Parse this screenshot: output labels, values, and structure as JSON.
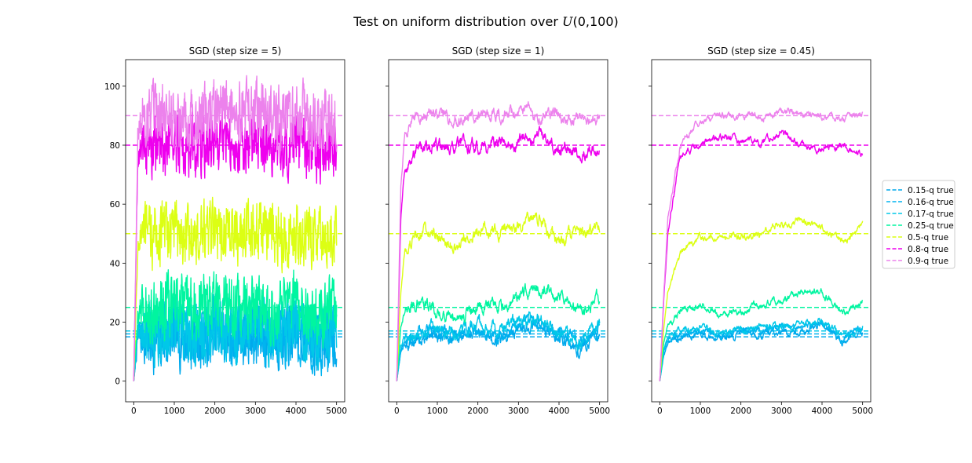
{
  "figure": {
    "suptitle": "Test on uniform distribution over U(0,100)"
  },
  "chart_data": [
    {
      "type": "line",
      "title": "SGD (step size = 5)",
      "step_size": 5,
      "xlim": [
        -200,
        5200
      ],
      "ylim": [
        -7,
        109
      ],
      "xticks": [
        0,
        1000,
        2000,
        3000,
        4000,
        5000
      ],
      "yticks": [
        0,
        20,
        40,
        60,
        80,
        100
      ],
      "n_iterations": 5000,
      "noise_amplitude": 7.5,
      "series": [
        {
          "name": "0.15-q",
          "color": "#00a9ec",
          "true_value": 15,
          "x": [
            0,
            100,
            200,
            500,
            1000,
            1500,
            2000,
            2500,
            3000,
            3500,
            4000,
            4500,
            5000
          ],
          "y": [
            0,
            14,
            15,
            14,
            16,
            14,
            17,
            15,
            16,
            15,
            17,
            13,
            15
          ]
        },
        {
          "name": "0.16-q",
          "color": "#00b4f0",
          "true_value": 16,
          "x": [
            0,
            100,
            200,
            500,
            1000,
            1500,
            2000,
            2500,
            3000,
            3500,
            4000,
            4500,
            5000
          ],
          "y": [
            0,
            15,
            16,
            15,
            17,
            15,
            18,
            16,
            17,
            16,
            18,
            14,
            16
          ]
        },
        {
          "name": "0.17-q",
          "color": "#00c8e8",
          "true_value": 17,
          "x": [
            0,
            100,
            200,
            500,
            1000,
            1500,
            2000,
            2500,
            3000,
            3500,
            4000,
            4500,
            5000
          ],
          "y": [
            0,
            16,
            17,
            16,
            18,
            16,
            19,
            17,
            18,
            17,
            19,
            15,
            17
          ]
        },
        {
          "name": "0.25-q",
          "color": "#00f5a0",
          "true_value": 25,
          "x": [
            0,
            100,
            200,
            500,
            1000,
            1500,
            2000,
            2500,
            3000,
            3500,
            4000,
            4500,
            5000
          ],
          "y": [
            0,
            22,
            25,
            24,
            26,
            24,
            27,
            25,
            26,
            24,
            27,
            23,
            25
          ]
        },
        {
          "name": "0.5-q",
          "color": "#dcff14",
          "true_value": 50,
          "x": [
            0,
            100,
            200,
            500,
            1000,
            1500,
            2000,
            2500,
            3000,
            3500,
            4000,
            4500,
            5000
          ],
          "y": [
            0,
            45,
            50,
            49,
            52,
            48,
            51,
            50,
            52,
            49,
            51,
            47,
            50
          ]
        },
        {
          "name": "0.8-q",
          "color": "#ee00ee",
          "true_value": 80,
          "x": [
            0,
            100,
            200,
            500,
            1000,
            1500,
            2000,
            2500,
            3000,
            3500,
            4000,
            4500,
            5000
          ],
          "y": [
            0,
            75,
            80,
            79,
            81,
            79,
            82,
            80,
            81,
            79,
            81,
            78,
            80
          ]
        },
        {
          "name": "0.9-q",
          "color": "#ec82ec",
          "true_value": 90,
          "x": [
            0,
            100,
            200,
            500,
            1000,
            1500,
            2000,
            2500,
            3000,
            3500,
            4000,
            4500,
            5000
          ],
          "y": [
            0,
            84,
            90,
            89,
            91,
            89,
            92,
            90,
            91,
            89,
            91,
            88,
            90
          ]
        }
      ]
    },
    {
      "type": "line",
      "title": "SGD (step size = 1)",
      "step_size": 1,
      "xlim": [
        -200,
        5200
      ],
      "ylim": [
        -7,
        109
      ],
      "xticks": [
        0,
        1000,
        2000,
        3000,
        4000,
        5000
      ],
      "yticks": [
        0,
        20,
        40,
        60,
        80,
        100
      ],
      "n_iterations": 5000,
      "noise_amplitude": 1.5,
      "series": [
        {
          "name": "0.15-q",
          "color": "#00a9ec",
          "true_value": 15,
          "x": [
            0,
            100,
            200,
            500,
            1000,
            1500,
            2000,
            2500,
            3000,
            3500,
            4000,
            4500,
            5000
          ],
          "y": [
            0,
            10,
            13,
            14,
            16,
            14,
            17,
            15,
            18,
            19,
            15,
            11,
            17
          ]
        },
        {
          "name": "0.16-q",
          "color": "#00b4f0",
          "true_value": 16,
          "x": [
            0,
            100,
            200,
            500,
            1000,
            1500,
            2000,
            2500,
            3000,
            3500,
            4000,
            4500,
            5000
          ],
          "y": [
            0,
            11,
            14,
            15,
            17,
            15,
            18,
            16,
            19,
            20,
            16,
            12,
            18
          ]
        },
        {
          "name": "0.17-q",
          "color": "#00c8e8",
          "true_value": 17,
          "x": [
            0,
            100,
            200,
            500,
            1000,
            1500,
            2000,
            2500,
            3000,
            3500,
            4000,
            4500,
            5000
          ],
          "y": [
            0,
            12,
            15,
            16,
            18,
            16,
            19,
            17,
            20,
            21,
            17,
            13,
            19
          ]
        },
        {
          "name": "0.25-q",
          "color": "#00f5a0",
          "true_value": 25,
          "x": [
            0,
            100,
            200,
            500,
            1000,
            1500,
            2000,
            2500,
            3000,
            3500,
            4000,
            4500,
            5000
          ],
          "y": [
            0,
            18,
            24,
            27,
            24,
            21,
            26,
            25,
            28,
            32,
            28,
            24,
            28
          ]
        },
        {
          "name": "0.5-q",
          "color": "#dcff14",
          "true_value": 50,
          "x": [
            0,
            100,
            200,
            500,
            1000,
            1500,
            2000,
            2500,
            3000,
            3500,
            4000,
            4500,
            5000
          ],
          "y": [
            0,
            30,
            44,
            50,
            50,
            46,
            51,
            50,
            53,
            55,
            47,
            50,
            53
          ]
        },
        {
          "name": "0.8-q",
          "color": "#ee00ee",
          "true_value": 80,
          "x": [
            0,
            100,
            200,
            500,
            1000,
            1500,
            2000,
            2500,
            3000,
            3500,
            4000,
            4500,
            5000
          ],
          "y": [
            0,
            55,
            72,
            80,
            79,
            81,
            79,
            82,
            81,
            84,
            79,
            78,
            78
          ]
        },
        {
          "name": "0.9-q",
          "color": "#ec82ec",
          "true_value": 90,
          "x": [
            0,
            100,
            200,
            500,
            1000,
            1500,
            2000,
            2500,
            3000,
            3500,
            4000,
            4500,
            5000
          ],
          "y": [
            0,
            65,
            84,
            91,
            90,
            89,
            91,
            90,
            92,
            90,
            90,
            89,
            89
          ]
        }
      ]
    },
    {
      "type": "line",
      "title": "SGD (step size = 0.45)",
      "step_size": 0.45,
      "xlim": [
        -200,
        5200
      ],
      "ylim": [
        -7,
        109
      ],
      "xticks": [
        0,
        1000,
        2000,
        3000,
        4000,
        5000
      ],
      "yticks": [
        0,
        20,
        40,
        60,
        80,
        100
      ],
      "n_iterations": 5000,
      "noise_amplitude": 0.8,
      "series": [
        {
          "name": "0.15-q",
          "color": "#00a9ec",
          "true_value": 15,
          "x": [
            0,
            100,
            200,
            500,
            1000,
            1500,
            2000,
            2500,
            3000,
            3500,
            4000,
            4500,
            5000
          ],
          "y": [
            0,
            9,
            13,
            15,
            16,
            14,
            16,
            16,
            17,
            17,
            19,
            13,
            17
          ]
        },
        {
          "name": "0.16-q",
          "color": "#00b4f0",
          "true_value": 16,
          "x": [
            0,
            100,
            200,
            500,
            1000,
            1500,
            2000,
            2500,
            3000,
            3500,
            4000,
            4500,
            5000
          ],
          "y": [
            0,
            10,
            14,
            16,
            17,
            15,
            17,
            17,
            18,
            18,
            20,
            14,
            18
          ]
        },
        {
          "name": "0.17-q",
          "color": "#00c8e8",
          "true_value": 17,
          "x": [
            0,
            100,
            200,
            500,
            1000,
            1500,
            2000,
            2500,
            3000,
            3500,
            4000,
            4500,
            5000
          ],
          "y": [
            0,
            11,
            15,
            17,
            18,
            16,
            18,
            18,
            19,
            19,
            21,
            15,
            19
          ]
        },
        {
          "name": "0.25-q",
          "color": "#00f5a0",
          "true_value": 25,
          "x": [
            0,
            100,
            200,
            500,
            1000,
            1500,
            2000,
            2500,
            3000,
            3500,
            4000,
            4500,
            5000
          ],
          "y": [
            0,
            13,
            19,
            24,
            26,
            22,
            24,
            26,
            27,
            30,
            30,
            23,
            27
          ]
        },
        {
          "name": "0.5-q",
          "color": "#dcff14",
          "true_value": 50,
          "x": [
            0,
            100,
            200,
            500,
            1000,
            1500,
            2000,
            2500,
            3000,
            3500,
            4000,
            4500,
            5000
          ],
          "y": [
            0,
            18,
            30,
            43,
            49,
            49,
            49,
            50,
            53,
            54,
            52,
            47,
            53
          ]
        },
        {
          "name": "0.8-q",
          "color": "#ee00ee",
          "true_value": 80,
          "x": [
            0,
            100,
            200,
            500,
            1000,
            1500,
            2000,
            2500,
            3000,
            3500,
            4000,
            4500,
            5000
          ],
          "y": [
            0,
            28,
            50,
            77,
            80,
            83,
            81,
            81,
            84,
            80,
            79,
            79,
            77
          ]
        },
        {
          "name": "0.9-q",
          "color": "#ec82ec",
          "true_value": 90,
          "x": [
            0,
            100,
            200,
            500,
            1000,
            1500,
            2000,
            2500,
            3000,
            3500,
            4000,
            4500,
            5000
          ],
          "y": [
            0,
            30,
            55,
            80,
            88,
            90,
            90,
            90,
            92,
            91,
            90,
            89,
            90
          ]
        }
      ]
    }
  ],
  "legend": {
    "entries": [
      {
        "label": "0.15-q true",
        "color": "#00a9ec"
      },
      {
        "label": "0.16-q true",
        "color": "#00b4f0"
      },
      {
        "label": "0.17-q true",
        "color": "#00c8e8"
      },
      {
        "label": "0.25-q true",
        "color": "#00f5a0"
      },
      {
        "label": "0.5-q true",
        "color": "#dcff14"
      },
      {
        "label": "0.8-q true",
        "color": "#ee00ee"
      },
      {
        "label": "0.9-q true",
        "color": "#ec82ec"
      }
    ]
  }
}
